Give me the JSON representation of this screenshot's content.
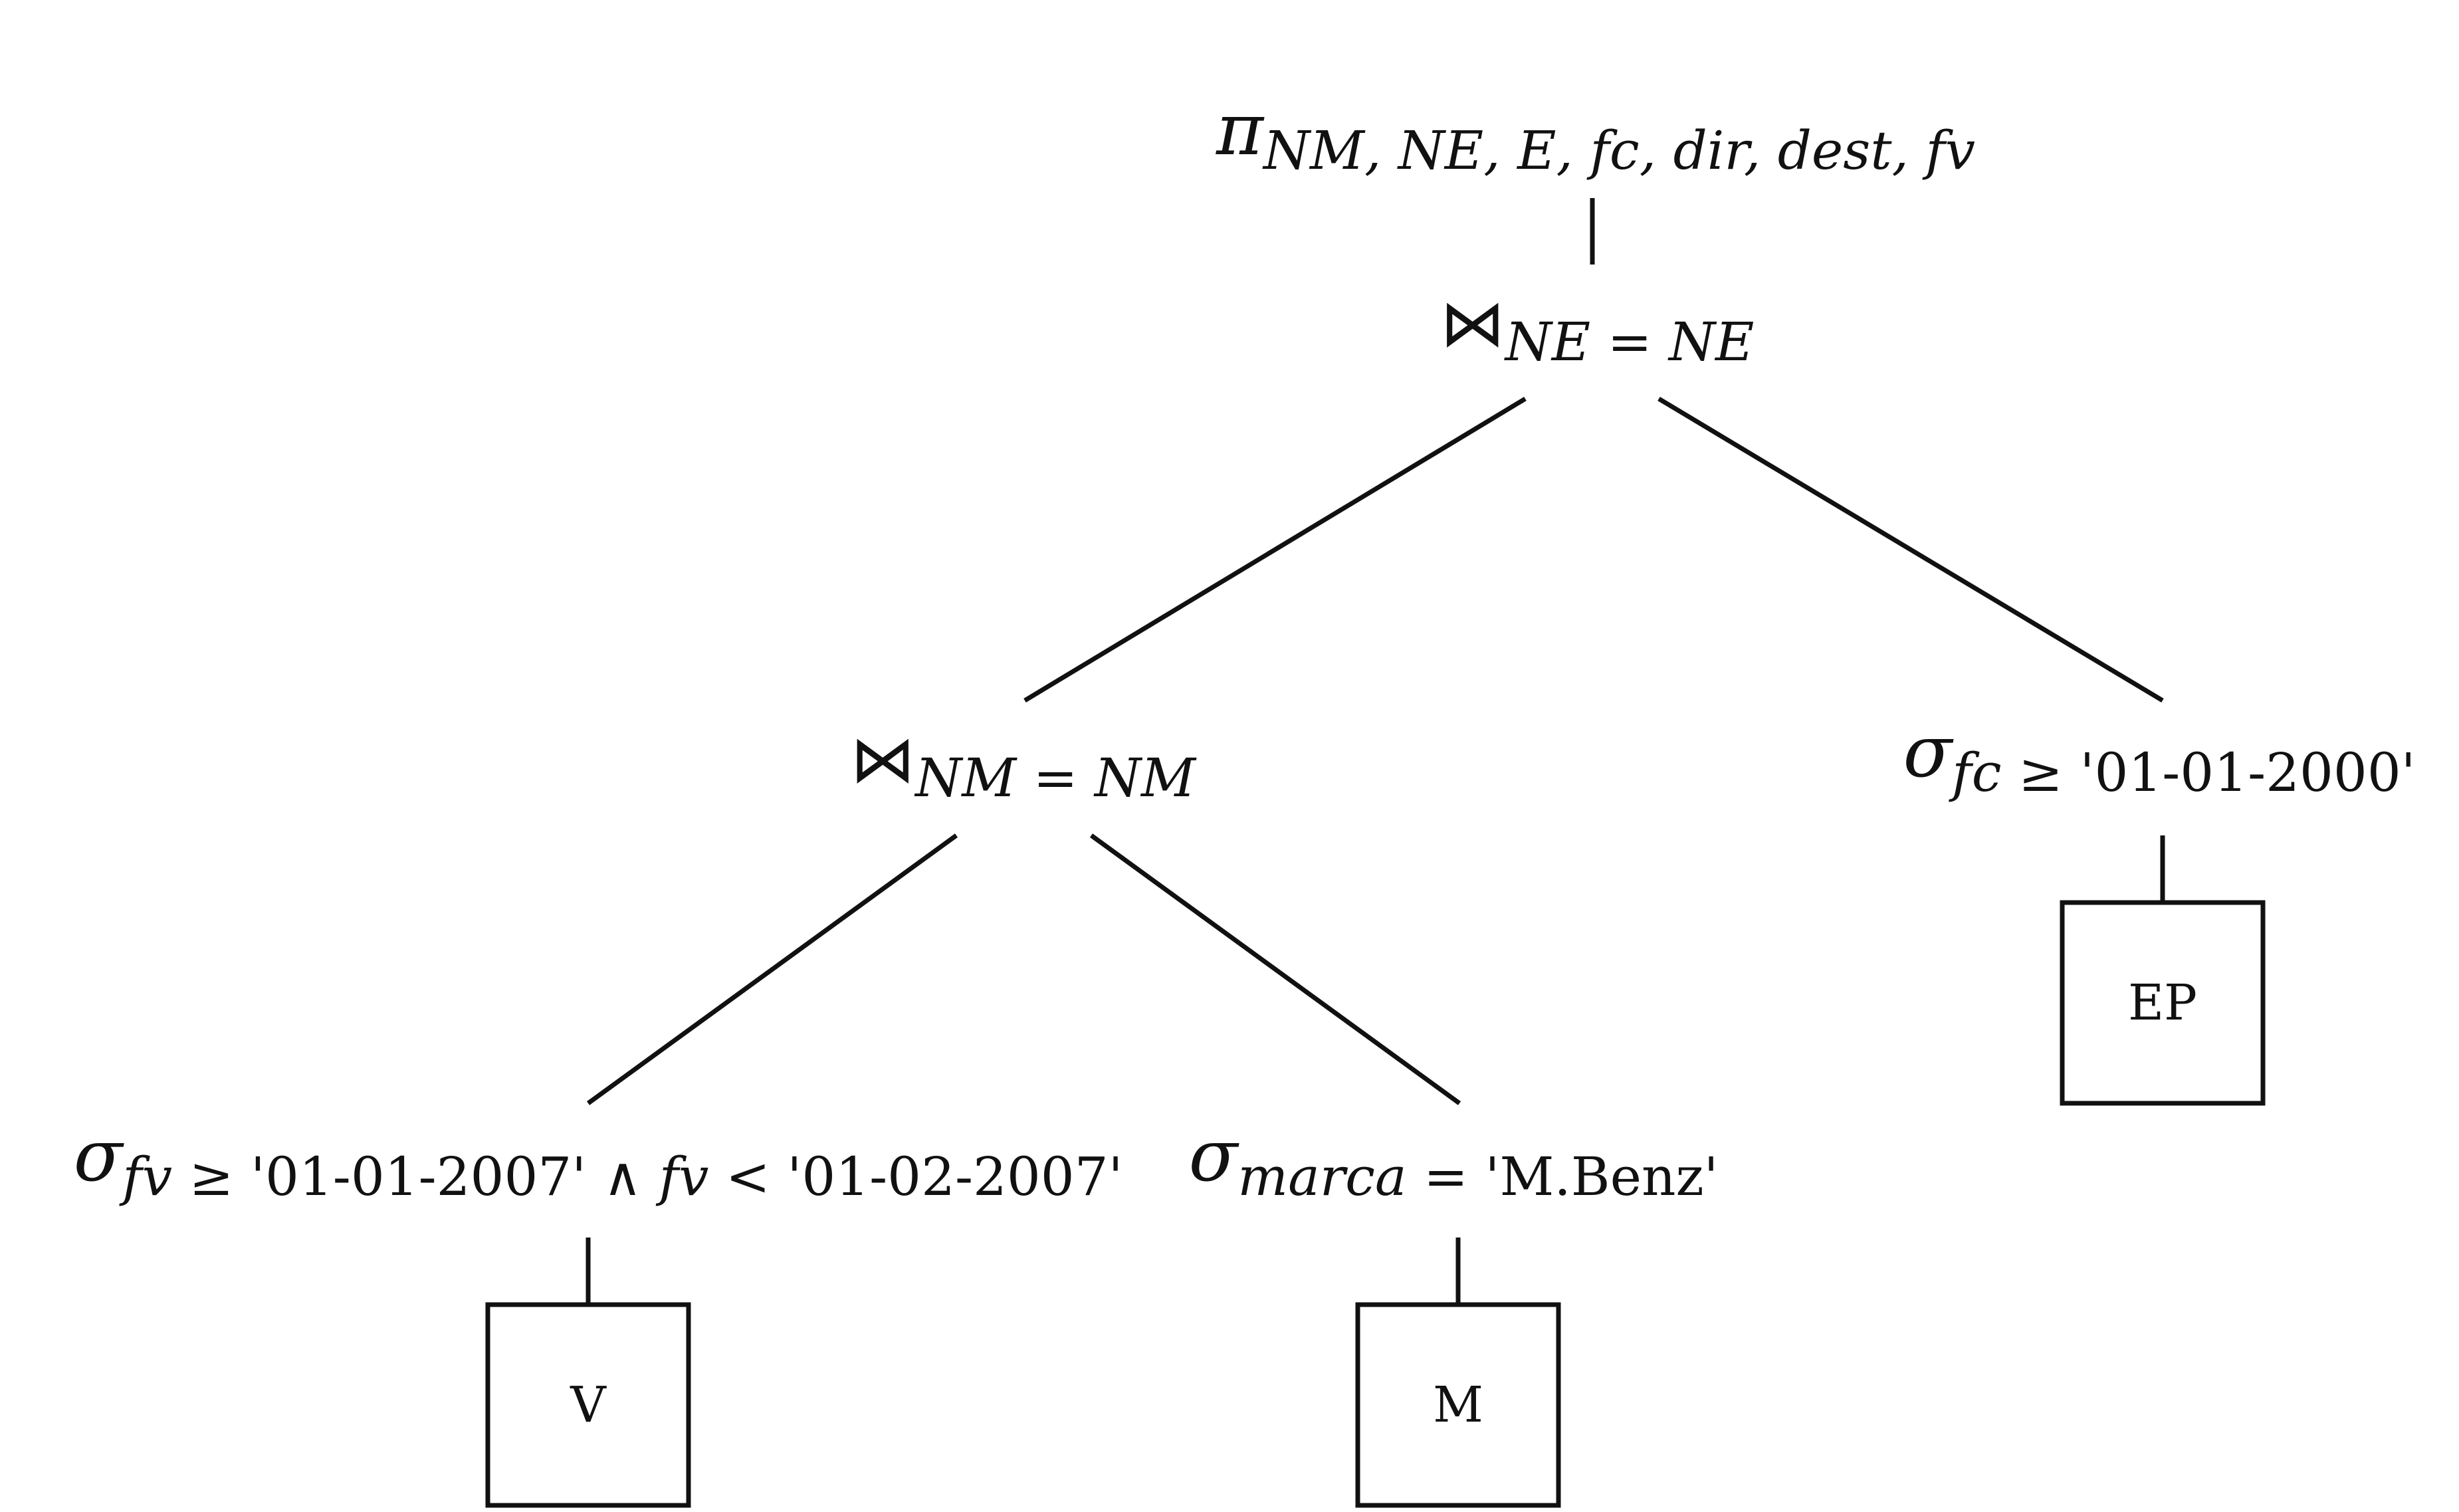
{
  "diagram": {
    "root": {
      "symbol": "π",
      "subscript": "NM, NE, E, fc, dir, dest, fv"
    },
    "join_top": {
      "symbol": "⋈",
      "subscript": "NE = NE"
    },
    "join_left": {
      "symbol": "⋈",
      "subscript": "NM = NM"
    },
    "select_v": {
      "symbol": "σ",
      "attr1": "fv",
      "op1": " ≥ ",
      "lit1": "'01-01-2007'",
      "and": " ∧ ",
      "attr2": "fv",
      "op2": " < ",
      "lit2": "'01-02-2007'"
    },
    "select_m": {
      "symbol": "σ",
      "attr": "marca",
      "op": " = ",
      "lit": "'M.Benz'"
    },
    "select_ep": {
      "symbol": "σ",
      "attr": "fc",
      "op": " ≥ ",
      "lit": "'01-01-2000'"
    },
    "relations": {
      "v": "V",
      "m": "M",
      "ep": "EP"
    }
  }
}
